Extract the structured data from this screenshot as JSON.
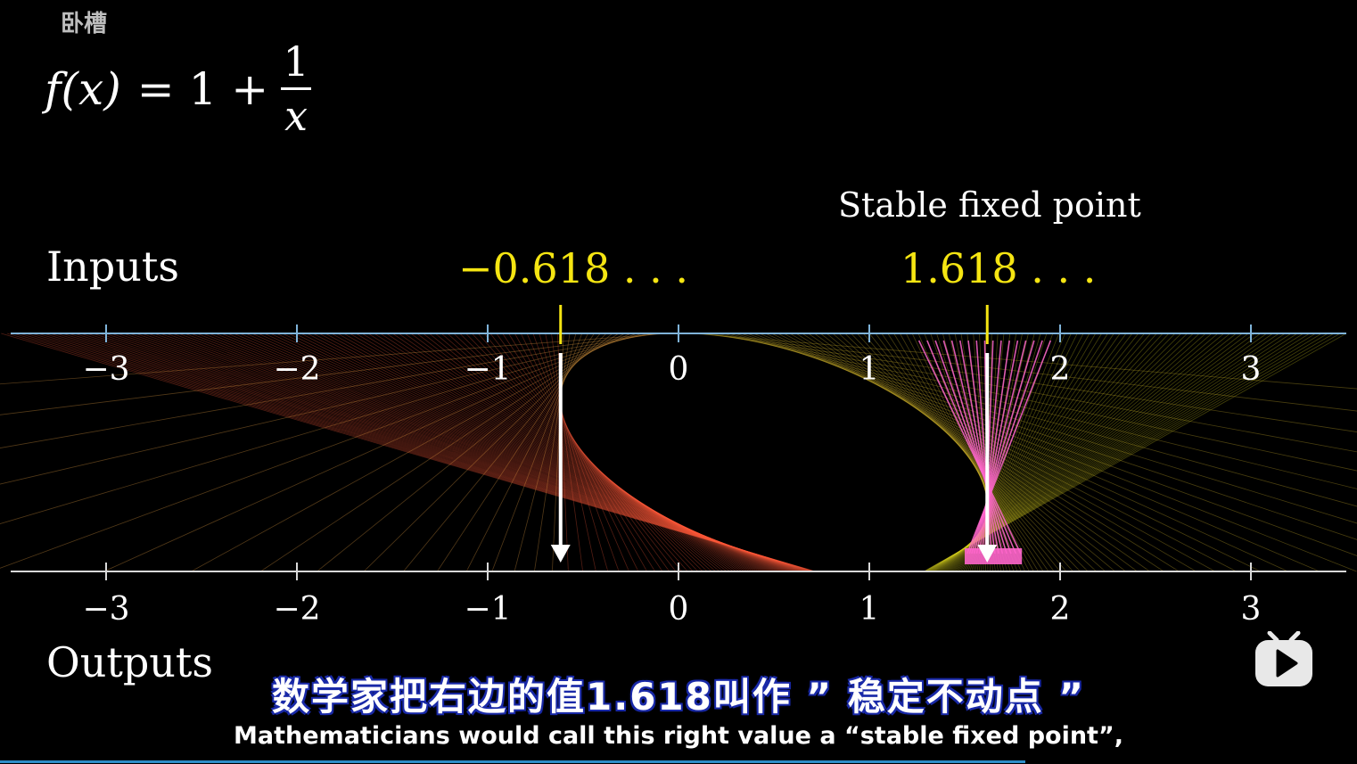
{
  "watermark": "卧槽",
  "formula": {
    "lhs_fn": "f",
    "lhs_arg": "(x)",
    "equals_part": "= 1 +",
    "numerator": "1",
    "denominator": "x"
  },
  "axes": {
    "inputs_label": "Inputs",
    "outputs_label": "Outputs",
    "ticks": [
      "−3",
      "−2",
      "−1",
      "0",
      "1",
      "2",
      "3"
    ],
    "tick_values": [
      -3,
      -2,
      -1,
      0,
      1,
      2,
      3
    ],
    "range": [
      -3.55,
      3.5
    ]
  },
  "fixed_points": {
    "left_value_label": "−0.618 . . .",
    "right_value_label": "1.618 . . .",
    "left": -0.618,
    "right": 1.618,
    "stable_label": "Stable fixed point"
  },
  "subtitles": {
    "chinese": "数学家把右边的值1.618叫作 ” 稳定不动点 ”",
    "english": "Mathematicians would call this right value a “stable fixed point”,"
  },
  "colors": {
    "axis": "#7fb3d9",
    "fixed_point": "#f5e512",
    "highlight": "#ff66cc",
    "progress": "#2e8ec9"
  },
  "icons": {
    "play": "play-icon"
  }
}
